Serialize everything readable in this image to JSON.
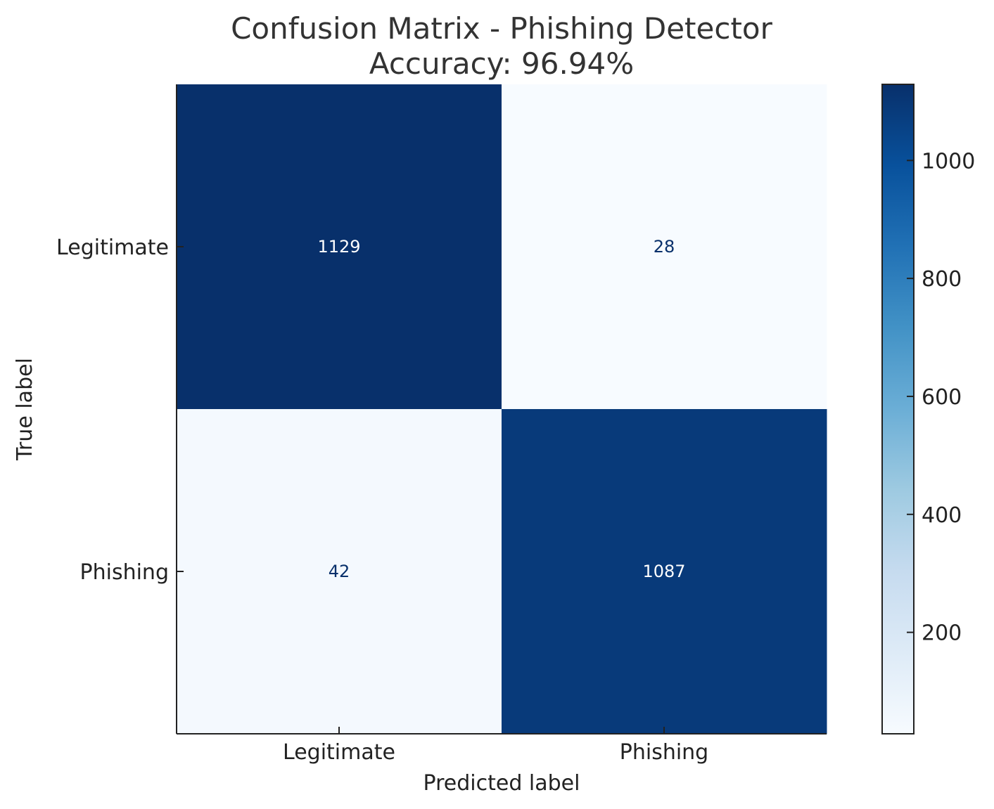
{
  "chart_data": {
    "type": "heatmap",
    "title": "Confusion Matrix - Phishing Detector",
    "subtitle": "Accuracy: 96.94%",
    "xlabel": "Predicted label",
    "ylabel": "True label",
    "x_categories": [
      "Legitimate",
      "Phishing"
    ],
    "y_categories": [
      "Legitimate",
      "Phishing"
    ],
    "values": [
      [
        1129,
        28
      ],
      [
        42,
        1087
      ]
    ],
    "value_labels": [
      [
        "1129",
        "28"
      ],
      [
        "42",
        "1087"
      ]
    ],
    "colormap": "Blues",
    "color_range": [
      28,
      1129
    ],
    "colorbar": {
      "ticks": [
        200,
        400,
        600,
        800,
        1000
      ],
      "tick_labels": [
        "200",
        "400",
        "600",
        "800",
        "1000"
      ],
      "range": [
        28,
        1129
      ]
    },
    "colors": {
      "low": "#f7fbff",
      "high": "#08306b",
      "text_on_dark": "#ffffff",
      "text_on_light": "#08306b"
    }
  }
}
